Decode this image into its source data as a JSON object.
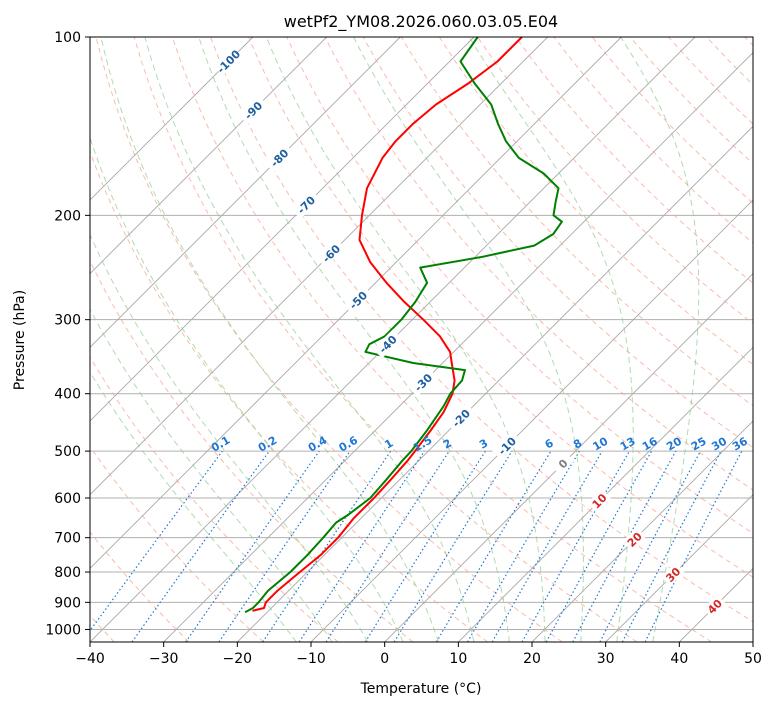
{
  "chart_data": {
    "type": "line",
    "title": "wetPf2_YM08.2026.060.03.05.E04",
    "xlabel": "Temperature (°C)",
    "ylabel": "Pressure (hPa)",
    "xlim": [
      -40,
      50
    ],
    "ylim": [
      1050,
      100
    ],
    "y_scale": "log",
    "x_ticks": [
      "−40",
      "−30",
      "−20",
      "−10",
      "0",
      "10",
      "20",
      "30",
      "40",
      "50"
    ],
    "x_tick_values": [
      -40,
      -30,
      -20,
      -10,
      0,
      10,
      20,
      30,
      40,
      50
    ],
    "y_ticks": [
      "100",
      "200",
      "300",
      "400",
      "500",
      "600",
      "700",
      "800",
      "900",
      "1000"
    ],
    "y_tick_values": [
      100,
      200,
      300,
      400,
      500,
      600,
      700,
      800,
      900,
      1000
    ],
    "grid": true,
    "skew_lines_T": [
      -100,
      -90,
      -80,
      -70,
      -60,
      -50,
      -40,
      -30,
      -20,
      -10,
      0,
      10,
      20,
      30,
      40,
      50
    ],
    "dry_adiabats_theta_C": [
      -40,
      -30,
      -20,
      -10,
      0,
      10,
      20,
      30,
      40,
      50,
      60,
      70,
      80,
      90,
      100,
      110,
      120,
      130,
      140,
      150,
      160,
      170,
      180,
      190,
      200
    ],
    "moist_adiabats_T_C": [
      -15,
      -10,
      -5,
      0,
      5,
      10,
      15,
      20,
      25,
      30,
      35
    ],
    "mixing_ratio_lines_gkg": [
      0.1,
      0.2,
      0.4,
      0.6,
      1,
      1.5,
      2,
      3,
      4,
      6,
      8,
      10,
      13,
      16,
      20,
      25,
      30,
      36
    ],
    "mixing_ratio_labels": [
      "0.1",
      "0.2",
      "0.4",
      "0.6",
      "1",
      "1.5",
      "2",
      "3",
      "4",
      "6",
      "8",
      "10",
      "13",
      "16",
      "20",
      "25",
      "30",
      "36"
    ],
    "isotherm_labels": [
      {
        "text": "-100",
        "T": -100,
        "p": 110
      },
      {
        "text": "-90",
        "T": -90,
        "p": 133
      },
      {
        "text": "-80",
        "T": -80,
        "p": 160
      },
      {
        "text": "-70",
        "T": -70,
        "p": 192
      },
      {
        "text": "-60",
        "T": -60,
        "p": 232
      },
      {
        "text": "-50",
        "T": -50,
        "p": 278
      },
      {
        "text": "-40",
        "T": -40,
        "p": 330
      },
      {
        "text": "-30",
        "T": -30,
        "p": 383
      },
      {
        "text": "-20",
        "T": -20,
        "p": 440
      },
      {
        "text": "-10",
        "T": -10,
        "p": 490
      }
    ],
    "warm_isotherm_labels": [
      {
        "text": "0",
        "T": 0,
        "p": 525,
        "color": "#808080"
      },
      {
        "text": "10",
        "T": 10,
        "p": 607,
        "color": "#d62728"
      },
      {
        "text": "20",
        "T": 20,
        "p": 705,
        "color": "#d62728"
      },
      {
        "text": "30",
        "T": 30,
        "p": 808,
        "color": "#d62728"
      },
      {
        "text": "40",
        "T": 40,
        "p": 915,
        "color": "#d62728"
      }
    ],
    "series": [
      {
        "color": "#ff0000",
        "p": [
          930,
          920,
          900,
          860,
          800,
          750,
          700,
          650,
          600,
          560,
          520,
          500,
          460,
          430,
          400,
          380,
          360,
          340,
          320,
          300,
          280,
          260,
          240,
          220,
          200,
          180,
          160,
          150,
          140,
          130,
          120,
          110,
          100
        ],
        "T": [
          -22.2,
          -21.0,
          -21.5,
          -21.5,
          -21.0,
          -20.5,
          -20.5,
          -21.0,
          -21.0,
          -21.2,
          -21.5,
          -21.8,
          -22.5,
          -23.2,
          -24.5,
          -26.0,
          -28.2,
          -30.5,
          -34.0,
          -38.5,
          -43.5,
          -48.5,
          -53.5,
          -58.0,
          -61.0,
          -64.0,
          -66.0,
          -66.5,
          -66.5,
          -66.0,
          -64.5,
          -63.5,
          -63.5
        ]
      },
      {
        "color": "#008000",
        "p": [
          935,
          920,
          900,
          860,
          800,
          750,
          700,
          660,
          640,
          600,
          560,
          520,
          500,
          460,
          420,
          400,
          380,
          365,
          355,
          340,
          330,
          320,
          300,
          280,
          260,
          245,
          235,
          225,
          215,
          205,
          200,
          190,
          180,
          170,
          160,
          150,
          140,
          130,
          120,
          110,
          100
        ],
        "T": [
          -23.0,
          -22.5,
          -22.5,
          -22.8,
          -22.3,
          -22.3,
          -22.5,
          -22.8,
          -22.2,
          -21.5,
          -21.8,
          -22.2,
          -22.3,
          -23.0,
          -24.0,
          -24.8,
          -25.0,
          -26.0,
          -34.0,
          -42.0,
          -42.5,
          -41.5,
          -41.5,
          -42.0,
          -43.0,
          -46.0,
          -39.0,
          -33.5,
          -32.5,
          -33.0,
          -35.0,
          -36.5,
          -38.0,
          -42.0,
          -47.5,
          -51.5,
          -55.0,
          -58.5,
          -63.5,
          -68.5,
          -69.5
        ]
      }
    ]
  }
}
